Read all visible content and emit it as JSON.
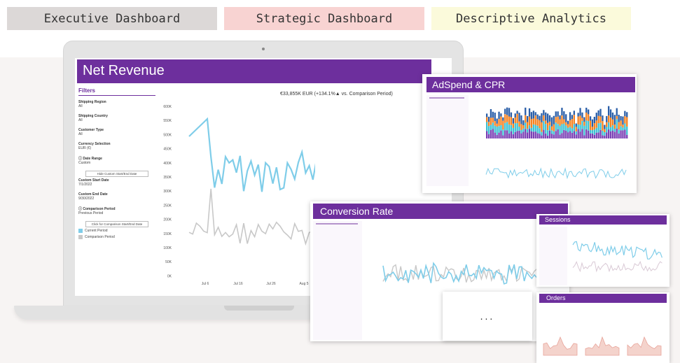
{
  "tags": {
    "executive": "Executive Dashboard",
    "strategic": "Strategic Dashboard",
    "descriptive": "Descriptive Analytics"
  },
  "net_revenue": {
    "title": "Net Revenue",
    "kpi": "€33,855K EUR (+134.1%▲ vs. Comparison Period)",
    "filters": {
      "title": "Filters",
      "items": [
        {
          "label": "Shipping Region",
          "value": "All"
        },
        {
          "label": "Shipping Country",
          "value": "All"
        },
        {
          "label": "Customer Type",
          "value": "All"
        },
        {
          "label": "Currency Selection",
          "value": "EUR (€)"
        }
      ],
      "date_range_label": "Date Range",
      "date_range_value": "Custom",
      "hide_custom_btn": "Hide Custom Start/End Date",
      "custom_start_label": "Custom Start Date",
      "custom_start_value": "7/1/2022",
      "custom_end_label": "Custom End Date",
      "custom_end_value": "9/30/2022",
      "comparison_label": "Comparison Period",
      "comparison_value": "Previous Period",
      "comparison_btn": "Click for Comparison Start/End Date",
      "legend_current": "Current Period",
      "legend_comparison": "Comparison Period"
    },
    "y_ticks": [
      "600K",
      "550K",
      "500K",
      "450K",
      "400K",
      "350K",
      "300K",
      "250K",
      "200K",
      "150K",
      "100K",
      "50K",
      "0K"
    ],
    "x_ticks": [
      "Jul 6",
      "Jul 16",
      "Jul 26",
      "Aug 5"
    ],
    "colors": {
      "current": "#7fcde9",
      "comparison": "#c8c8c8",
      "accent": "#6d2f9d"
    }
  },
  "adspend": {
    "title": "AdSpend & CPR"
  },
  "conversion": {
    "title": "Conversion Rate"
  },
  "sessions": {
    "title": "Sessions"
  },
  "orders": {
    "title": "Orders"
  },
  "more": {
    "label": "..."
  }
}
